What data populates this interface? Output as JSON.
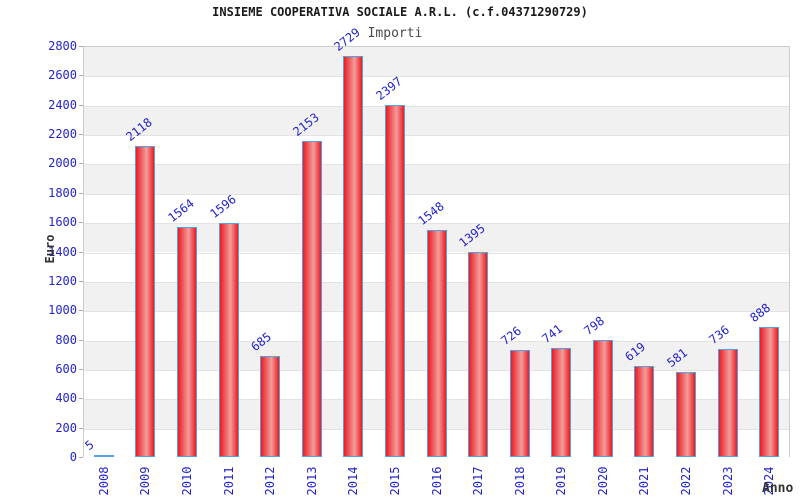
{
  "chart_data": {
    "type": "bar",
    "title": "INSIEME COOPERATIVA SOCIALE A.R.L. (c.f.04371290729)",
    "subtitle": "Importi",
    "xlabel": "Anno",
    "ylabel": "Euro",
    "categories": [
      "2008",
      "2009",
      "2010",
      "2011",
      "2012",
      "2013",
      "2014",
      "2015",
      "2016",
      "2017",
      "2018",
      "2019",
      "2020",
      "2021",
      "2022",
      "2023",
      "2024"
    ],
    "values": [
      5,
      2118,
      1564,
      1596,
      685,
      2153,
      2729,
      2397,
      1548,
      1395,
      726,
      741,
      798,
      619,
      581,
      736,
      888
    ],
    "ylim": [
      0,
      2800
    ],
    "ytick_step": 200,
    "yticks": [
      0,
      200,
      400,
      600,
      800,
      1000,
      1200,
      1400,
      1600,
      1800,
      2000,
      2200,
      2400,
      2600,
      2800
    ],
    "grid": true,
    "legend_position": "none",
    "band_pattern": "alternating gray/white from top",
    "colors": {
      "title": "#1a1a1a",
      "subtitle": "#4a4a4a",
      "tick_label": "#2424cc",
      "value_label": "#2424cc",
      "axis_title": "#333333",
      "bar_border": "#55a0de",
      "bar_edge": "#ec1b20",
      "bar_center": "#f29d9d",
      "band_gray": "#f1f1f1",
      "band_white": "#ffffff",
      "grid_line": "#e3e3e3",
      "plot_border": "#cccccc"
    }
  }
}
